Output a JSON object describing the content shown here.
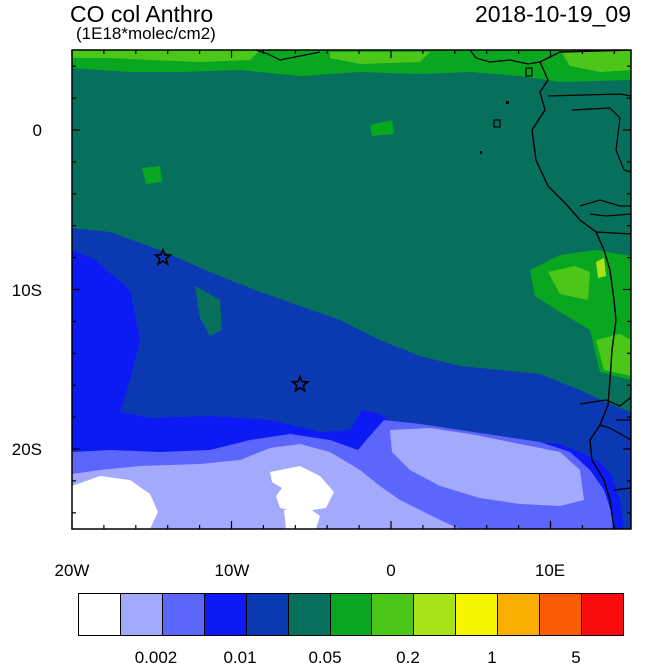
{
  "header": {
    "title": "CO col Anthro",
    "units": "(1E18*molec/cm2)",
    "datetime": "2018-10-19_09"
  },
  "axes": {
    "y_labels": [
      "0",
      "10S",
      "20S"
    ],
    "x_labels": [
      "20W",
      "10W",
      "0",
      "10E"
    ]
  },
  "colorbar": {
    "colors": [
      "#ffffff",
      "#a3a9fb",
      "#5c66fb",
      "#0c1bf3",
      "#0b39b1",
      "#06705d",
      "#09a71f",
      "#4dc61a",
      "#a7e316",
      "#f5f500",
      "#fbae02",
      "#fb5b02",
      "#fb0c0c"
    ],
    "labels": [
      "0.002",
      "0.01",
      "0.05",
      "0.2",
      "1",
      "5"
    ]
  },
  "markers": [
    {
      "name": "station",
      "lon": -14.3,
      "lat": -8.0
    },
    {
      "name": "station",
      "lon": -5.7,
      "lat": -15.95
    }
  ]
}
